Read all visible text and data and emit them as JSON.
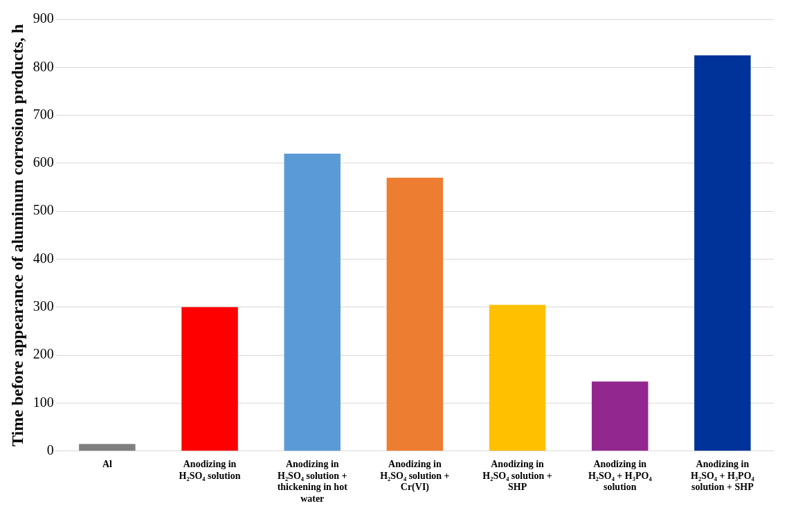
{
  "chart_data": {
    "type": "bar",
    "ylabel": "Time before appearance of aluminum corrosion products, h",
    "categories": [
      "Al",
      "Anodizing in H₂SO₄ solution",
      "Anodizing in H₂SO₄ solution + thickening in hot water",
      "Anodizing in H₂SO₄ solution + Cr(VI)",
      "Anodizing in H₂SO₄ solution + SHP",
      "Anodizing in H₂SO₄ + H₃PO₄ solution",
      "Anodizing in H₂SO₄ + H₃PO₄ solution + SHP"
    ],
    "values": [
      15,
      300,
      620,
      570,
      305,
      145,
      825
    ],
    "colors": [
      "#7f7f7f",
      "#ff0000",
      "#5b9bd5",
      "#ed7d31",
      "#ffc000",
      "#92278f",
      "#003399"
    ],
    "ylim": [
      0,
      900
    ],
    "yticks": [
      0,
      100,
      200,
      300,
      400,
      500,
      600,
      700,
      800,
      900
    ],
    "grid": "y",
    "legend": false
  }
}
